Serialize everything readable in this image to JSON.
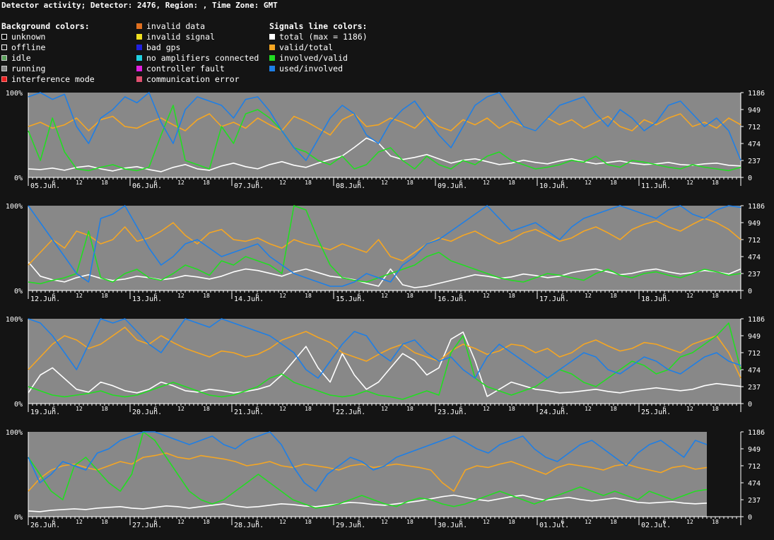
{
  "title": "Detector activity; Detector: 2476, Region: , Time Zone: GMT",
  "legend": {
    "background": {
      "heading": "Background colors:",
      "items": [
        {
          "label": "unknown",
          "color": "#000000",
          "outline": "#ffffff"
        },
        {
          "label": "offline",
          "color": "#1a1a1a",
          "outline": "#ffffff"
        },
        {
          "label": "idle",
          "color": "#5aa05a",
          "outline": "#cccccc"
        },
        {
          "label": "running",
          "color": "#888888",
          "outline": "#cccccc"
        },
        {
          "label": "interference mode",
          "color": "#e82020",
          "outline": "#ff8080"
        }
      ]
    },
    "errors": {
      "items": [
        {
          "label": "invalid data",
          "color": "#e07020"
        },
        {
          "label": "invalid signal",
          "color": "#f0e020"
        },
        {
          "label": "bad gps",
          "color": "#2020e0"
        },
        {
          "label": "no amplifiers connected",
          "color": "#20d0e0"
        },
        {
          "label": "controller fault",
          "color": "#e020e0"
        },
        {
          "label": "communication error",
          "color": "#e05070"
        }
      ]
    },
    "signals": {
      "heading": "Signals line colors:",
      "items": [
        {
          "label": "total (max = 1186)",
          "color": "#ffffff"
        },
        {
          "label": "valid/total",
          "color": "#f5a623"
        },
        {
          "label": "involved/valid",
          "color": "#22dd22"
        },
        {
          "label": "used/involved",
          "color": "#1e7fe6"
        }
      ]
    }
  },
  "chart_data": {
    "type": "line",
    "background_color": "#888888",
    "y_left_ticks": [
      "100%",
      "0%"
    ],
    "y_right_ticks": [
      1186,
      949,
      712,
      474,
      237,
      0
    ],
    "total_max": 1186,
    "hour_ticks": [
      "6",
      "12",
      "18"
    ],
    "series": [
      {
        "name": "total (max = 1186)",
        "color": "#ffffff",
        "key": "total"
      },
      {
        "name": "valid/total",
        "color": "#f5a623",
        "key": "valid"
      },
      {
        "name": "involved/valid",
        "color": "#22dd22",
        "key": "involved"
      },
      {
        "name": "used/involved",
        "color": "#1e7fe6",
        "key": "used"
      }
    ],
    "rows": [
      {
        "days": [
          "05.Jun.",
          "06.Jun.",
          "07.Jun.",
          "08.Jun.",
          "09.Jun.",
          "10.Jun.",
          "11.Jun."
        ],
        "hours_covered": 168,
        "total": [
          120,
          110,
          130,
          100,
          140,
          160,
          120,
          90,
          130,
          150,
          110,
          80,
          140,
          180,
          120,
          100,
          160,
          200,
          150,
          120,
          180,
          220,
          170,
          140,
          200,
          250,
          300,
          420,
          550,
          480,
          300,
          250,
          280,
          320,
          260,
          200,
          240,
          260,
          220,
          180,
          200,
          240,
          210,
          190,
          230,
          260,
          220,
          190,
          210,
          230,
          200,
          180,
          190,
          210,
          180,
          170,
          190,
          200,
          170,
          160
        ],
        "valid": [
          60,
          65,
          58,
          62,
          70,
          55,
          68,
          72,
          60,
          58,
          65,
          70,
          62,
          55,
          68,
          75,
          60,
          65,
          58,
          70,
          62,
          55,
          72,
          66,
          58,
          50,
          68,
          75,
          60,
          62,
          70,
          65,
          58,
          72,
          60,
          55,
          68,
          62,
          70,
          58,
          66,
          60,
          55,
          70,
          62,
          68,
          58,
          65,
          72,
          60,
          55,
          68,
          62,
          70,
          75,
          60,
          65,
          58,
          70,
          62
        ],
        "involved": [
          55,
          20,
          70,
          30,
          10,
          8,
          12,
          15,
          10,
          8,
          12,
          50,
          85,
          20,
          15,
          10,
          60,
          40,
          75,
          80,
          70,
          55,
          35,
          30,
          20,
          15,
          25,
          10,
          15,
          30,
          35,
          20,
          10,
          25,
          15,
          10,
          20,
          15,
          25,
          30,
          20,
          15,
          10,
          12,
          15,
          20,
          18,
          25,
          15,
          12,
          20,
          18,
          15,
          12,
          10,
          15,
          12,
          10,
          8,
          12
        ],
        "used": [
          95,
          100,
          92,
          98,
          60,
          40,
          70,
          80,
          95,
          88,
          100,
          65,
          40,
          80,
          95,
          90,
          85,
          70,
          92,
          95,
          78,
          55,
          35,
          20,
          45,
          70,
          85,
          75,
          50,
          40,
          65,
          80,
          90,
          70,
          50,
          35,
          60,
          85,
          95,
          100,
          80,
          60,
          55,
          70,
          85,
          90,
          95,
          75,
          60,
          80,
          70,
          55,
          65,
          85,
          90,
          75,
          60,
          70,
          55,
          20
        ]
      },
      {
        "days": [
          "12.Jun.",
          "13.Jun.",
          "14.Jun.",
          "15.Jun.",
          "16.Jun.",
          "17.Jun.",
          "18.Jun."
        ],
        "hours_covered": 168,
        "total": [
          400,
          200,
          150,
          120,
          180,
          220,
          170,
          140,
          160,
          200,
          180,
          150,
          170,
          210,
          190,
          160,
          200,
          260,
          300,
          280,
          240,
          200,
          260,
          300,
          250,
          200,
          180,
          150,
          100,
          60,
          300,
          80,
          40,
          60,
          100,
          140,
          180,
          220,
          200,
          170,
          190,
          230,
          210,
          180,
          200,
          250,
          280,
          300,
          260,
          220,
          240,
          280,
          300,
          260,
          230,
          250,
          280,
          260,
          230,
          300
        ],
        "valid": [
          30,
          45,
          60,
          50,
          70,
          65,
          55,
          60,
          75,
          58,
          62,
          70,
          80,
          65,
          55,
          68,
          72,
          60,
          58,
          62,
          55,
          50,
          60,
          55,
          52,
          48,
          55,
          50,
          45,
          60,
          40,
          35,
          45,
          55,
          62,
          58,
          65,
          70,
          62,
          55,
          60,
          68,
          72,
          65,
          58,
          62,
          70,
          75,
          68,
          60,
          72,
          78,
          82,
          75,
          70,
          78,
          85,
          80,
          72,
          60
        ],
        "involved": [
          10,
          8,
          12,
          15,
          20,
          70,
          15,
          10,
          20,
          25,
          15,
          12,
          20,
          30,
          25,
          18,
          35,
          30,
          40,
          35,
          30,
          20,
          100,
          95,
          60,
          30,
          15,
          12,
          10,
          15,
          20,
          25,
          30,
          40,
          45,
          35,
          30,
          25,
          20,
          15,
          12,
          10,
          15,
          20,
          18,
          15,
          12,
          20,
          25,
          18,
          15,
          20,
          22,
          18,
          15,
          20,
          25,
          22,
          18,
          20
        ],
        "used": [
          100,
          80,
          60,
          40,
          20,
          10,
          85,
          90,
          100,
          75,
          50,
          30,
          40,
          55,
          60,
          50,
          40,
          45,
          50,
          55,
          40,
          30,
          20,
          15,
          10,
          5,
          5,
          10,
          20,
          15,
          10,
          30,
          40,
          55,
          60,
          70,
          80,
          90,
          100,
          85,
          70,
          75,
          80,
          70,
          60,
          75,
          85,
          90,
          95,
          100,
          95,
          90,
          85,
          95,
          100,
          90,
          85,
          95,
          100,
          98
        ]
      },
      {
        "days": [
          "19.Jun.",
          "20.Jun.",
          "21.Jun.",
          "22.Jun.",
          "23.Jun.",
          "24.Jun.",
          "25.Jun."
        ],
        "hours_covered": 168,
        "total": [
          150,
          400,
          500,
          350,
          200,
          160,
          300,
          250,
          180,
          150,
          200,
          300,
          250,
          180,
          160,
          200,
          180,
          150,
          170,
          200,
          250,
          400,
          600,
          800,
          500,
          300,
          700,
          400,
          200,
          300,
          500,
          700,
          600,
          400,
          500,
          900,
          1000,
          600,
          100,
          200,
          300,
          250,
          200,
          180,
          150,
          160,
          180,
          200,
          170,
          150,
          180,
          200,
          220,
          200,
          180,
          200,
          250,
          280,
          260,
          240
        ],
        "valid": [
          40,
          55,
          70,
          80,
          75,
          65,
          70,
          80,
          90,
          75,
          70,
          80,
          72,
          65,
          60,
          55,
          62,
          60,
          55,
          58,
          65,
          75,
          80,
          85,
          78,
          72,
          60,
          55,
          50,
          58,
          65,
          70,
          60,
          55,
          50,
          62,
          70,
          65,
          58,
          62,
          70,
          68,
          60,
          65,
          55,
          60,
          70,
          75,
          68,
          62,
          65,
          72,
          70,
          65,
          60,
          70,
          75,
          80,
          60,
          30
        ],
        "involved": [
          20,
          15,
          10,
          8,
          10,
          12,
          15,
          10,
          8,
          10,
          15,
          20,
          25,
          20,
          15,
          10,
          8,
          10,
          15,
          20,
          30,
          35,
          25,
          20,
          15,
          10,
          8,
          10,
          15,
          10,
          8,
          5,
          10,
          15,
          10,
          60,
          80,
          30,
          20,
          15,
          10,
          15,
          20,
          30,
          40,
          35,
          25,
          20,
          30,
          40,
          50,
          45,
          35,
          40,
          55,
          60,
          70,
          80,
          95,
          40
        ],
        "used": [
          100,
          95,
          80,
          60,
          40,
          70,
          100,
          95,
          100,
          85,
          70,
          60,
          80,
          100,
          95,
          90,
          100,
          95,
          90,
          85,
          80,
          70,
          60,
          40,
          30,
          50,
          70,
          85,
          80,
          60,
          50,
          70,
          75,
          60,
          50,
          55,
          40,
          30,
          55,
          70,
          60,
          50,
          40,
          30,
          40,
          50,
          60,
          55,
          40,
          35,
          45,
          55,
          50,
          40,
          35,
          45,
          55,
          60,
          50,
          45
        ]
      },
      {
        "days": [
          "26.Jun.",
          "27.Jun.",
          "28.Jun.",
          "29.Jun.",
          "30.Jun.",
          "01.Jul.",
          "02.Jul."
        ],
        "hours_covered": 160,
        "total": [
          80,
          70,
          90,
          100,
          110,
          100,
          120,
          130,
          140,
          120,
          110,
          130,
          150,
          140,
          120,
          140,
          160,
          180,
          150,
          130,
          140,
          160,
          180,
          170,
          150,
          140,
          160,
          180,
          200,
          190,
          170,
          160,
          180,
          200,
          220,
          250,
          280,
          300,
          270,
          240,
          220,
          250,
          280,
          300,
          260,
          230,
          250,
          270,
          240,
          220,
          240,
          260,
          230,
          200,
          190,
          200,
          210,
          190,
          180,
          190
        ],
        "valid": [
          30,
          45,
          55,
          60,
          62,
          58,
          55,
          60,
          65,
          62,
          70,
          72,
          75,
          70,
          68,
          72,
          70,
          68,
          65,
          60,
          62,
          65,
          60,
          58,
          62,
          60,
          58,
          55,
          60,
          62,
          58,
          60,
          62,
          60,
          58,
          55,
          40,
          30,
          55,
          60,
          58,
          62,
          65,
          60,
          55,
          50,
          58,
          62,
          60,
          58,
          55,
          60,
          62,
          58,
          55,
          52,
          58,
          60,
          56,
          58
        ],
        "involved": [
          70,
          50,
          30,
          20,
          60,
          70,
          55,
          40,
          30,
          50,
          100,
          90,
          70,
          50,
          30,
          20,
          15,
          20,
          30,
          40,
          50,
          40,
          30,
          20,
          15,
          10,
          12,
          15,
          20,
          25,
          20,
          15,
          12,
          18,
          22,
          20,
          15,
          12,
          15,
          20,
          25,
          30,
          25,
          20,
          15,
          20,
          25,
          30,
          35,
          30,
          25,
          30,
          25,
          20,
          30,
          25,
          20,
          25,
          30,
          32
        ],
        "used": [
          70,
          40,
          50,
          65,
          60,
          55,
          75,
          80,
          90,
          95,
          100,
          100,
          95,
          90,
          85,
          90,
          95,
          85,
          80,
          90,
          95,
          100,
          85,
          60,
          40,
          30,
          50,
          60,
          70,
          65,
          55,
          60,
          70,
          75,
          80,
          85,
          90,
          95,
          88,
          80,
          75,
          85,
          90,
          95,
          80,
          70,
          65,
          75,
          85,
          90,
          80,
          70,
          60,
          75,
          85,
          90,
          80,
          70,
          90,
          85
        ]
      }
    ]
  }
}
